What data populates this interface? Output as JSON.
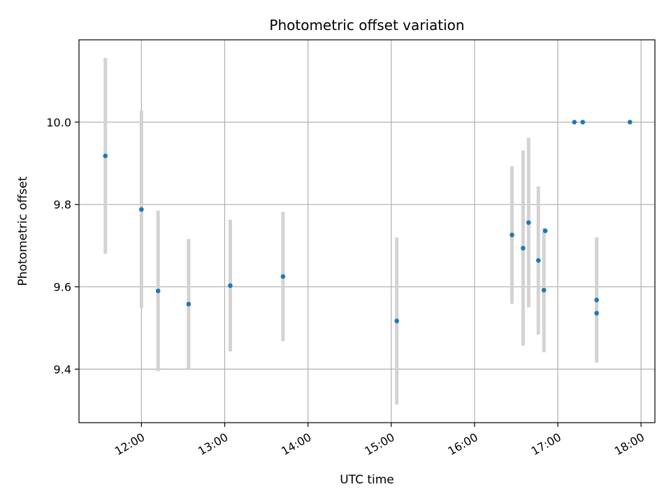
{
  "chart_data": {
    "type": "scatter",
    "title": "Photometric offset variation",
    "xlabel": "UTC time",
    "ylabel": "Photometric offset",
    "xlim": [
      "11:15",
      "18:10"
    ],
    "ylim": [
      9.27,
      10.2
    ],
    "x_ticks": [
      "12:00",
      "13:00",
      "14:00",
      "15:00",
      "16:00",
      "17:00",
      "18:00"
    ],
    "y_ticks": [
      9.4,
      9.6,
      9.8,
      10.0
    ],
    "y_tick_labels": [
      "9.4",
      "9.6",
      "9.8",
      "10.0"
    ],
    "grid": true,
    "legend": "none",
    "colors": {
      "marker": "#1f77b4",
      "errorbar": "#d3d3d3",
      "grid": "#b0b0b0"
    },
    "points": [
      {
        "x": "11:34",
        "y": 9.918,
        "yerr": 0.238
      },
      {
        "x": "12:00",
        "y": 9.788,
        "yerr": 0.24
      },
      {
        "x": "12:12",
        "y": 9.59,
        "yerr": 0.195
      },
      {
        "x": "12:34",
        "y": 9.558,
        "yerr": 0.158
      },
      {
        "x": "13:04",
        "y": 9.603,
        "yerr": 0.16
      },
      {
        "x": "13:42",
        "y": 9.625,
        "yerr": 0.157
      },
      {
        "x": "15:04",
        "y": 9.517,
        "yerr": 0.203
      },
      {
        "x": "16:27",
        "y": 9.726,
        "yerr": 0.167
      },
      {
        "x": "16:35",
        "y": 9.694,
        "yerr": 0.237
      },
      {
        "x": "16:39",
        "y": 9.756,
        "yerr": 0.206
      },
      {
        "x": "16:46",
        "y": 9.664,
        "yerr": 0.18
      },
      {
        "x": "16:50",
        "y": 9.592,
        "yerr": 0.151
      },
      {
        "x": "16:51",
        "y": 9.736,
        "yerr": 0.0
      },
      {
        "x": "17:12",
        "y": 10.0,
        "yerr": 0.0
      },
      {
        "x": "17:18",
        "y": 10.0,
        "yerr": 0.0
      },
      {
        "x": "17:28",
        "y": 9.568,
        "yerr": 0.152
      },
      {
        "x": "17:28",
        "y": 9.536,
        "yerr": 0.0
      },
      {
        "x": "17:52",
        "y": 10.0,
        "yerr": 0.0
      }
    ]
  }
}
